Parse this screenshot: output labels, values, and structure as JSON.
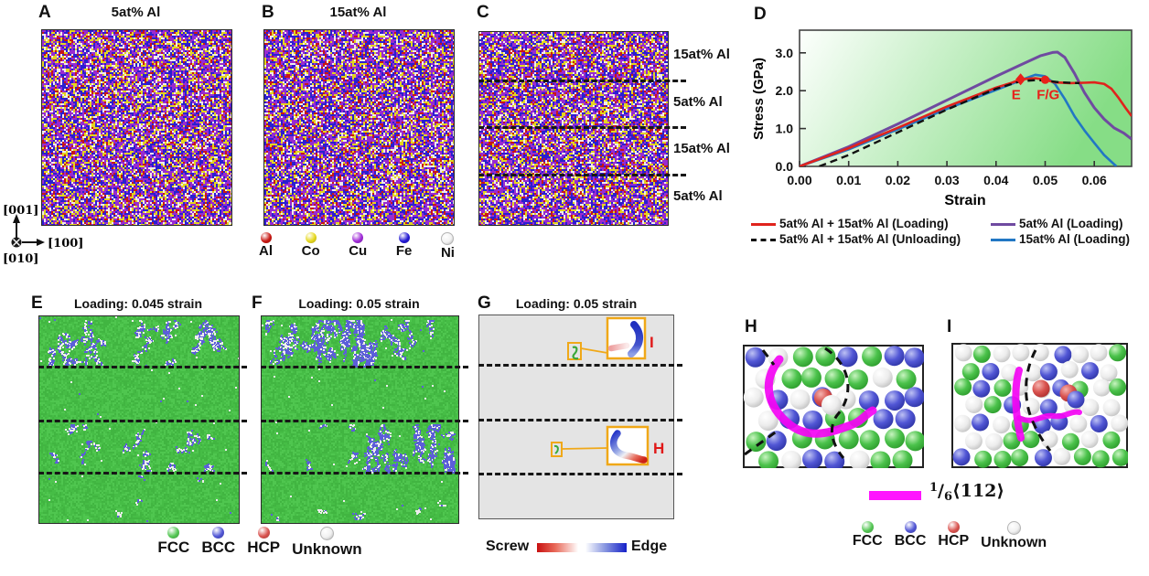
{
  "panels": {
    "a": {
      "label": "A",
      "title": "5at% Al"
    },
    "b": {
      "label": "B",
      "title": "15at% Al"
    },
    "c": {
      "label": "C",
      "layers": [
        "15at% Al",
        "5at% Al",
        "15at% Al",
        "5at% Al"
      ]
    },
    "d": {
      "label": "D"
    },
    "e": {
      "label": "E",
      "title": "Loading: 0.045 strain"
    },
    "f": {
      "label": "F",
      "title": "Loading: 0.05 strain"
    },
    "g": {
      "label": "G",
      "title": "Loading: 0.05 strain",
      "inset_top_label": "I",
      "inset_bottom_label": "H"
    },
    "h": {
      "label": "H"
    },
    "i": {
      "label": "I"
    }
  },
  "orientation": {
    "up": "[001]",
    "right": "[100]",
    "into_page": "[010]"
  },
  "element_legend": [
    {
      "symbol": "Al",
      "color": "#c81812"
    },
    {
      "symbol": "Co",
      "color": "#e6d81f"
    },
    {
      "symbol": "Cu",
      "color": "#a02cd8"
    },
    {
      "symbol": "Fe",
      "color": "#2218d4"
    },
    {
      "symbol": "Ni",
      "color": "#f2f2f2"
    }
  ],
  "structure_legend": [
    {
      "name": "FCC",
      "color": "#55c755"
    },
    {
      "name": "BCC",
      "color": "#5156d5"
    },
    {
      "name": "HCP",
      "color": "#d9534f"
    },
    {
      "name": "Unknown",
      "color": "#f0f0f0"
    }
  ],
  "screw_edge": {
    "screw": "Screw",
    "edge": "Edge"
  },
  "burgers": {
    "sup": "1",
    "slash": "/",
    "sub": "6",
    "vector": "⟨112⟩",
    "color": "#ff14ff"
  },
  "chart_data": {
    "type": "line",
    "xlabel": "Strain",
    "ylabel": "Stress (GPa)",
    "xlim": [
      0,
      0.0676
    ],
    "ylim": [
      0,
      3.6
    ],
    "grid": false,
    "legend_position": "bottom",
    "background_gradient": {
      "from": "#fdfffd",
      "to": "#86dd86"
    },
    "xticks": {
      "values": [
        0,
        0.01,
        0.02,
        0.03,
        0.04,
        0.05,
        0.06
      ],
      "labels": [
        "0.00",
        "0.01",
        "0.02",
        "0.03",
        "0.04",
        "0.05",
        "0.06"
      ]
    },
    "yticks": {
      "values": [
        0,
        1,
        2,
        3
      ],
      "labels": [
        "0.0",
        "1.0",
        "2.0",
        "3.0"
      ]
    },
    "series": [
      {
        "name": "5at% Al + 15at% Al (Loading)",
        "color": "#e0231c",
        "dash": false,
        "x": [
          0,
          0.005,
          0.01,
          0.015,
          0.02,
          0.025,
          0.03,
          0.035,
          0.04,
          0.043,
          0.045,
          0.048,
          0.05,
          0.052,
          0.055,
          0.058,
          0.06,
          0.062,
          0.0635,
          0.065,
          0.0665,
          0.0676
        ],
        "y": [
          0,
          0.24,
          0.48,
          0.75,
          1.02,
          1.3,
          1.58,
          1.83,
          2.08,
          2.2,
          2.3,
          2.33,
          2.29,
          2.22,
          2.2,
          2.21,
          2.22,
          2.18,
          2.05,
          1.8,
          1.52,
          1.33
        ]
      },
      {
        "name": "5at% Al + 15at% Al (Unloading)",
        "color": "#111111",
        "dash": true,
        "x": [
          0.004,
          0.01,
          0.015,
          0.02,
          0.025,
          0.03,
          0.035,
          0.04,
          0.045,
          0.048,
          0.05,
          0.053,
          0.057
        ],
        "y": [
          0,
          0.3,
          0.6,
          0.9,
          1.2,
          1.5,
          1.78,
          2.05,
          2.25,
          2.28,
          2.27,
          2.22,
          2.2
        ]
      },
      {
        "name": "5at% Al (Loading)",
        "color": "#6f4aa0",
        "dash": false,
        "x": [
          0,
          0.01,
          0.02,
          0.03,
          0.04,
          0.045,
          0.049,
          0.0515,
          0.0525,
          0.054,
          0.056,
          0.058,
          0.06,
          0.062,
          0.064,
          0.066,
          0.0676
        ],
        "y": [
          0,
          0.52,
          1.12,
          1.75,
          2.38,
          2.68,
          2.92,
          3.01,
          3.02,
          2.88,
          2.45,
          1.95,
          1.55,
          1.25,
          1.02,
          0.88,
          0.72
        ]
      },
      {
        "name": "15at% Al (Loading)",
        "color": "#2277c4",
        "dash": false,
        "x": [
          0,
          0.01,
          0.02,
          0.03,
          0.04,
          0.044,
          0.0465,
          0.048,
          0.05,
          0.052,
          0.054,
          0.056,
          0.058,
          0.06,
          0.062,
          0.0645
        ],
        "y": [
          0,
          0.45,
          0.98,
          1.52,
          2.02,
          2.22,
          2.35,
          2.42,
          2.38,
          2.18,
          1.78,
          1.32,
          0.95,
          0.62,
          0.3,
          0
        ]
      }
    ],
    "annotations": [
      {
        "text": "E",
        "marker": "diamond",
        "x": 0.045,
        "y": 2.3,
        "label_x": 0.0441,
        "label_y": 1.78
      },
      {
        "text": "F/G",
        "marker": "circle",
        "x": 0.05,
        "y": 2.29,
        "label_x": 0.0506,
        "label_y": 1.78
      }
    ],
    "legend_order": [
      0,
      2,
      1,
      3
    ]
  }
}
